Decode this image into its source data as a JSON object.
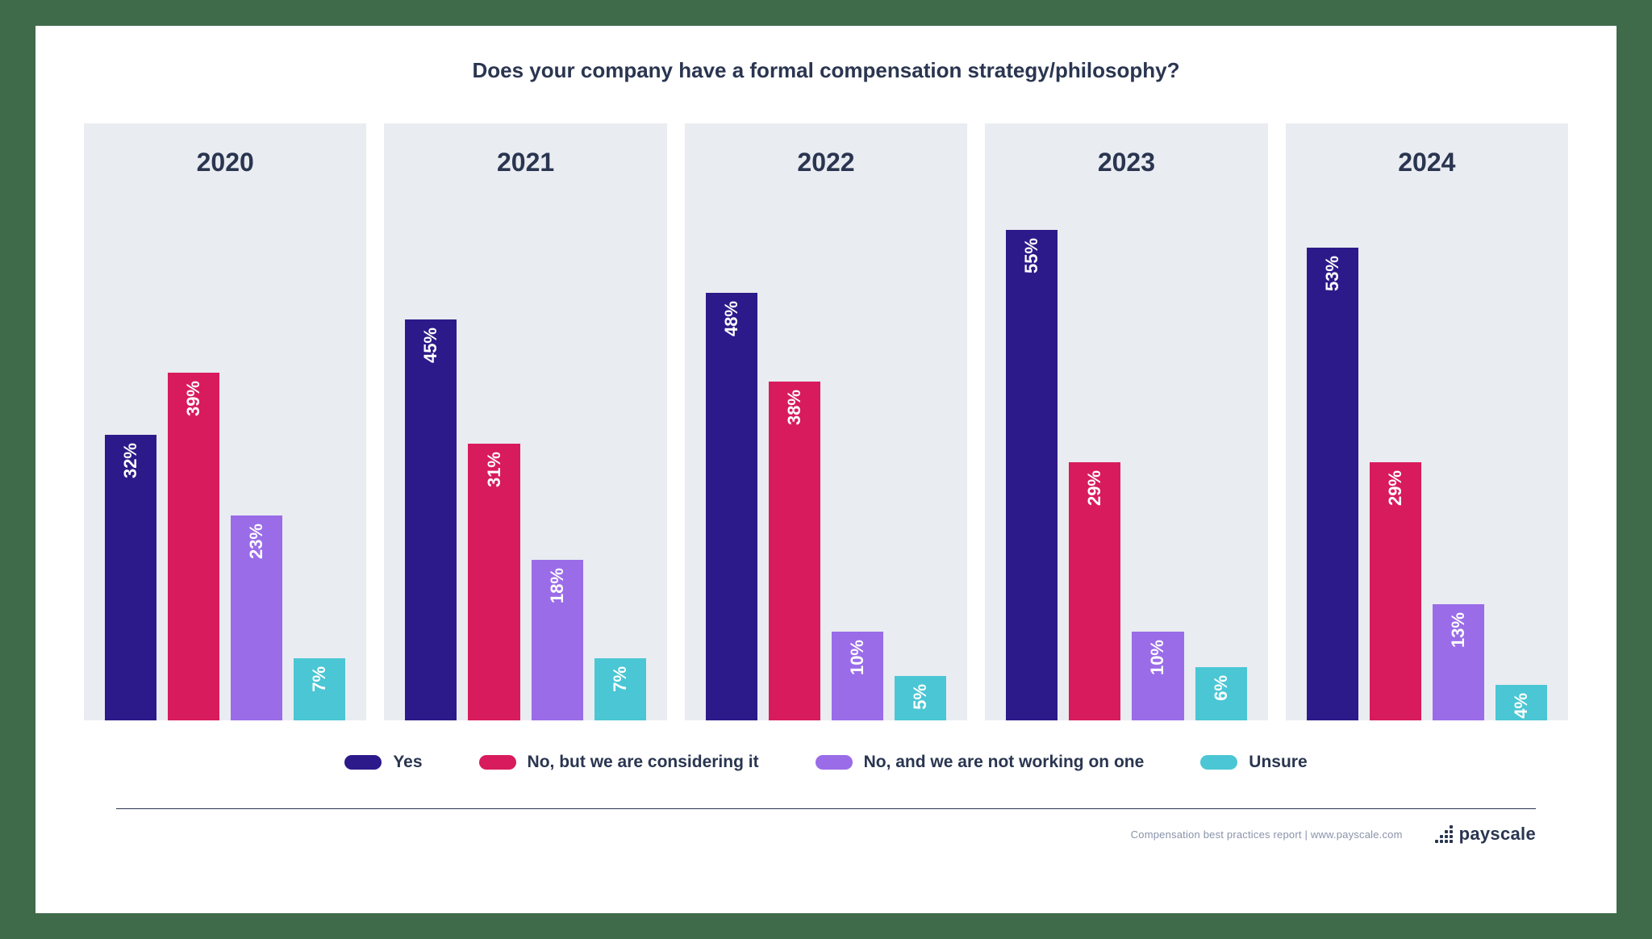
{
  "page_background": "#3f6b4a",
  "card_background": "#ffffff",
  "title": "Does your company have a formal compensation strategy/philosophy?",
  "title_color": "#2a3550",
  "title_fontsize": 26,
  "panel_background": "#e9ecf1",
  "panel_year_color": "#2a3550",
  "panel_year_fontsize": 32,
  "chart": {
    "type": "bar",
    "value_max": 60,
    "bar_label_fontsize": 22,
    "bar_label_color": "#ffffff",
    "series": [
      {
        "key": "yes",
        "label": "Yes",
        "color": "#2c1a8a"
      },
      {
        "key": "considering",
        "label": "No, but we are considering it",
        "color": "#d81b5c"
      },
      {
        "key": "not_working",
        "label": "No, and we are not working on one",
        "color": "#9a6ce8"
      },
      {
        "key": "unsure",
        "label": "Unsure",
        "color": "#4bc6d4"
      }
    ],
    "years": [
      {
        "year": "2020",
        "values": {
          "yes": 32,
          "considering": 39,
          "not_working": 23,
          "unsure": 7
        }
      },
      {
        "year": "2021",
        "values": {
          "yes": 45,
          "considering": 31,
          "not_working": 18,
          "unsure": 7
        }
      },
      {
        "year": "2022",
        "values": {
          "yes": 48,
          "considering": 38,
          "not_working": 10,
          "unsure": 5
        }
      },
      {
        "year": "2023",
        "values": {
          "yes": 55,
          "considering": 29,
          "not_working": 10,
          "unsure": 6
        }
      },
      {
        "year": "2024",
        "values": {
          "yes": 53,
          "considering": 29,
          "not_working": 13,
          "unsure": 4
        }
      }
    ]
  },
  "legend_text_color": "#2a3550",
  "legend_fontsize": 21,
  "footer_rule_color": "#2a3550",
  "footer_text": "Compensation best practices report | www.payscale.com",
  "brand": {
    "name": "payscale",
    "color": "#2a3550"
  }
}
